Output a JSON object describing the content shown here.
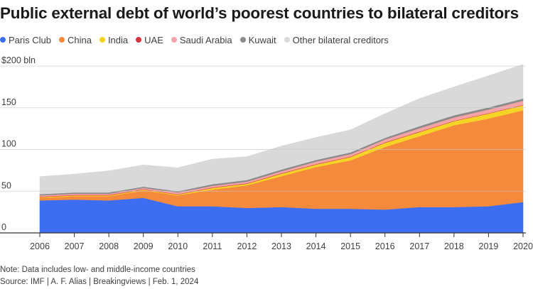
{
  "chart_data": {
    "type": "area",
    "stacked": true,
    "title": "Public external debt of world’s poorest countries to bilateral creditors",
    "x": [
      "2006",
      "2007",
      "2008",
      "2009",
      "2010",
      "2011",
      "2012",
      "2013",
      "2014",
      "2015",
      "2016",
      "2017",
      "2018",
      "2019",
      "2020"
    ],
    "y_tick_labels": [
      "$200 bln",
      "150",
      "100",
      "50",
      "0"
    ],
    "y_ticks": [
      200,
      150,
      100,
      50,
      0
    ],
    "ylim": [
      0,
      200
    ],
    "legend_position": "top-left",
    "grid": true,
    "series": [
      {
        "name": "Paris Club",
        "color": "#3d6ef2",
        "values": [
          39,
          40,
          39,
          42,
          32,
          32,
          30,
          31,
          29,
          29,
          28,
          31,
          31,
          32,
          37
        ]
      },
      {
        "name": "China",
        "color": "#f58a3d",
        "values": [
          3,
          4,
          5,
          9,
          13,
          20,
          27,
          37,
          50,
          58,
          75,
          85,
          98,
          105,
          110
        ]
      },
      {
        "name": "India",
        "color": "#f5d327",
        "values": [
          1,
          1,
          1,
          1,
          1,
          2,
          2,
          3,
          3,
          4,
          5,
          5,
          5,
          6,
          6
        ]
      },
      {
        "name": "UAE",
        "color": "#d63340",
        "values": [
          0.5,
          0.5,
          0.5,
          0.5,
          0.5,
          0.5,
          0.5,
          0.5,
          0.5,
          0.5,
          0.5,
          0.5,
          0.5,
          0.5,
          0.5
        ]
      },
      {
        "name": "Saudi Arabia",
        "color": "#f5a3a6",
        "values": [
          1.5,
          1.5,
          1.5,
          1.5,
          2,
          2,
          2,
          2.5,
          3,
          3,
          3.5,
          4,
          4,
          4.5,
          5
        ]
      },
      {
        "name": "Kuwait",
        "color": "#8a8a8a",
        "values": [
          1.5,
          1.5,
          1.5,
          1.5,
          1.5,
          2,
          2,
          2,
          2,
          2,
          2,
          2.5,
          2.5,
          2.5,
          2.5
        ]
      },
      {
        "name": "Other bilateral creditors",
        "color": "#d9d9d9",
        "values": [
          21,
          22,
          26,
          26,
          28,
          30,
          28,
          28,
          27,
          27,
          29,
          33,
          34,
          38,
          41
        ]
      }
    ],
    "note": "Note: Data includes low- and middle-income countries",
    "source": "Source: IMF | A. F. Alias | Breakingviews | Feb. 1, 2024"
  }
}
